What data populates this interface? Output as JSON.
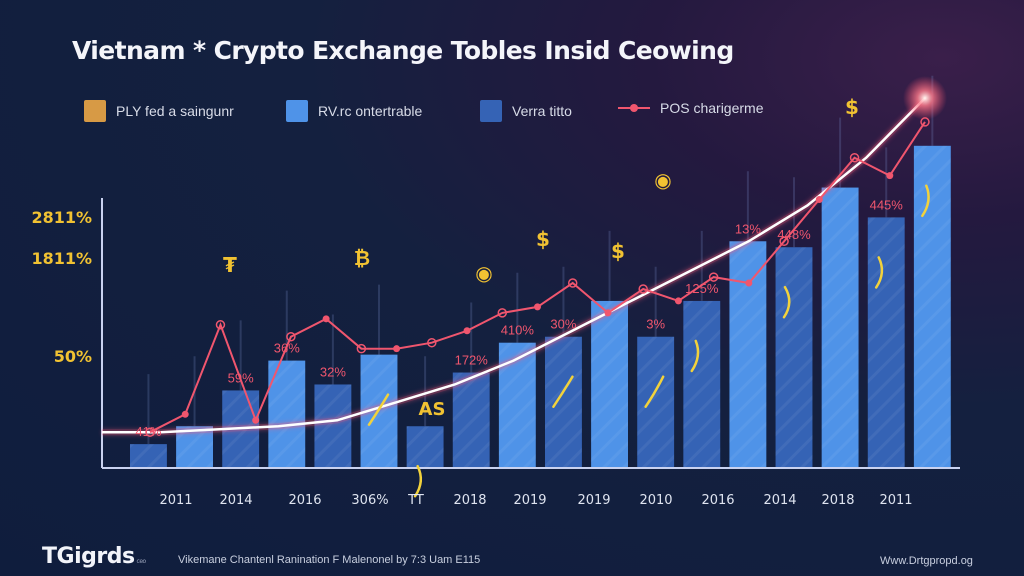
{
  "header": {
    "title": "Vietnam * Crypto Exchange Tobles Insid Ceowing"
  },
  "legend": [
    {
      "label": "PLY fed a saingunr",
      "color": "#d79a45",
      "kind": "swatch"
    },
    {
      "label": "RV.rc ontertrable",
      "color": "#4f93e8",
      "kind": "swatch"
    },
    {
      "label": "Verra titto",
      "color": "#3563b5",
      "kind": "swatch"
    },
    {
      "label": "POS charigerme",
      "color": "#f0566e",
      "kind": "line"
    }
  ],
  "footer": {
    "brand": "TGigrds",
    "brand_sub": "ceo",
    "caption": "Vikemane Chantenl Ranination F Malenonel by 7:3 Uam E115",
    "url": "Www.Drtgpropd.og"
  },
  "chart_data": {
    "type": "bar",
    "title": "Vietnam * Crypto Exchange Tobles Insid Ceowing",
    "xlabel": "",
    "ylabel": "",
    "y_tick_labels": [
      "2811%",
      "1811%",
      "50%"
    ],
    "y_tick_values": [
      2811,
      1811,
      50
    ],
    "grid": false,
    "legend_position": "top",
    "categories": [
      "2011",
      "2014",
      "2016",
      "306%",
      "TT",
      "2018",
      "2019",
      "2019",
      "2010",
      "2016",
      "2014",
      "2018",
      "2011"
    ],
    "bars": [
      {
        "x": "2011",
        "series": "Verra titto",
        "value": 4
      },
      {
        "x": "2014",
        "series": "RV.rc ontertrable",
        "value": 7
      },
      {
        "x": "2014",
        "series": "Verra titto",
        "value": 13
      },
      {
        "x": "2016",
        "series": "RV.rc ontertrable",
        "value": 18
      },
      {
        "x": "2016",
        "series": "Verra titto",
        "value": 14
      },
      {
        "x": "306%",
        "series": "RV.rc ontertrable",
        "value": 19
      },
      {
        "x": "TT",
        "series": "Verra titto",
        "value": 7
      },
      {
        "x": "2018",
        "series": "Verra titto",
        "value": 16
      },
      {
        "x": "2019",
        "series": "RV.rc ontertrable",
        "value": 21
      },
      {
        "x": "2019",
        "series": "Verra titto",
        "value": 22
      },
      {
        "x": "2019b",
        "series": "RV.rc ontertrable",
        "value": 28
      },
      {
        "x": "2010",
        "series": "Verra titto",
        "value": 22
      },
      {
        "x": "2016",
        "series": "Verra titto",
        "value": 28
      },
      {
        "x": "2014",
        "series": "RV.rc ontertrable",
        "value": 38
      },
      {
        "x": "2014",
        "series": "Verra titto",
        "value": 37
      },
      {
        "x": "2018",
        "series": "RV.rc ontertrable",
        "value": 47
      },
      {
        "x": "2018",
        "series": "Verra titto",
        "value": 42
      },
      {
        "x": "2011",
        "series": "RV.rc ontertrable",
        "value": 54
      }
    ],
    "data_labels": [
      {
        "text": "41%",
        "bar_index": 0
      },
      {
        "text": "59%",
        "bar_index": 2
      },
      {
        "text": "36%",
        "bar_index": 3
      },
      {
        "text": "32%",
        "bar_index": 4
      },
      {
        "text": "172%",
        "bar_index": 7
      },
      {
        "text": "410%",
        "bar_index": 8
      },
      {
        "text": "30%",
        "bar_index": 9
      },
      {
        "text": "3%",
        "bar_index": 11
      },
      {
        "text": "125%",
        "bar_index": 12
      },
      {
        "text": "13%",
        "bar_index": 13
      },
      {
        "text": "448%",
        "bar_index": 14
      },
      {
        "text": "445%",
        "bar_index": 16
      }
    ],
    "trend_line": {
      "name": "trend",
      "color": "#ffffff",
      "values": [
        6,
        6,
        6.5,
        7,
        8,
        11,
        14,
        18,
        23,
        28,
        33,
        38,
        44,
        52,
        62
      ]
    },
    "series_line": {
      "name": "POS charigerme",
      "color": "#f0566e",
      "values": [
        6,
        9,
        24,
        8,
        22,
        25,
        20,
        20,
        21,
        23,
        26,
        27,
        31,
        26,
        30,
        28,
        32,
        31,
        38,
        45,
        52,
        49,
        58
      ]
    },
    "icons": [
      "rupee-sign",
      "bitcoin-sign",
      "coin-face",
      "dollar-sign",
      "coin-face",
      "dollar-sign",
      "dollar-sign",
      "AS"
    ]
  }
}
